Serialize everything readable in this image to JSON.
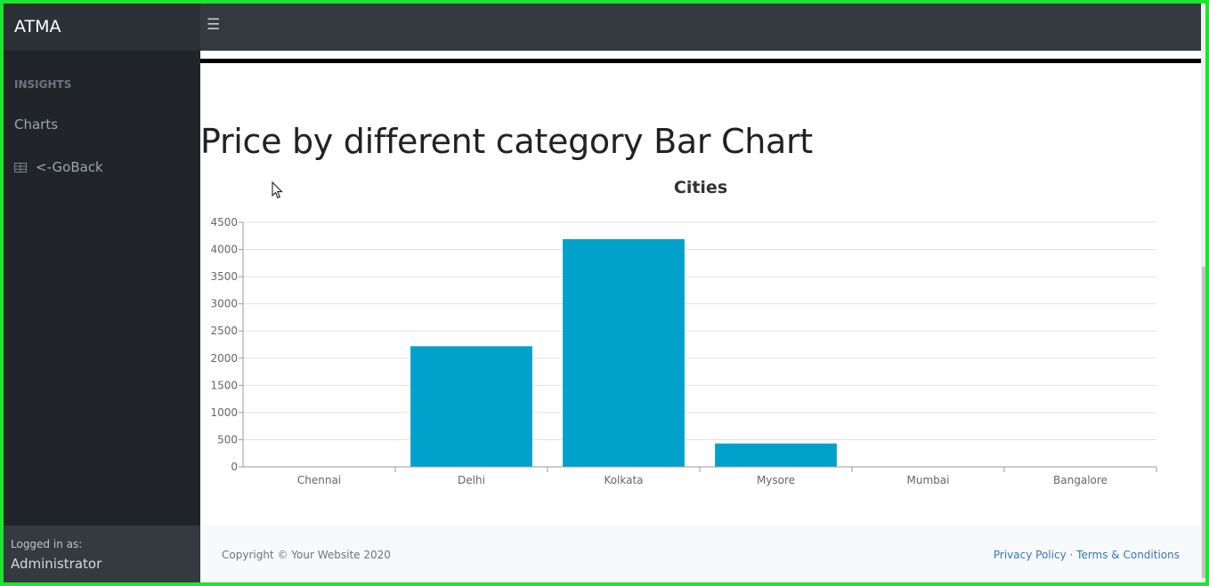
{
  "brand": {
    "title": "ATMA"
  },
  "topbar": {
    "toggle_icon": "hamburger-menu-icon"
  },
  "sidebar": {
    "heading": "INSIGHTS",
    "items": [
      {
        "label": "Charts",
        "icon": ""
      },
      {
        "label": "<-GoBack",
        "icon": "table-icon"
      }
    ],
    "footer": {
      "logged_in_label": "Logged in as:",
      "user": "Administrator"
    }
  },
  "main": {
    "title": "Price by different category Bar Chart"
  },
  "chart_data": {
    "type": "bar",
    "title": "Cities",
    "xlabel": "",
    "ylabel": "",
    "categories": [
      "Chennai",
      "Delhi",
      "Kolkata",
      "Mysore",
      "Mumbai",
      "Bangalore"
    ],
    "values": [
      0,
      2220,
      4190,
      430,
      0,
      0
    ],
    "ylim": [
      0,
      4500
    ],
    "yticks": [
      0,
      500,
      1000,
      1500,
      2000,
      2500,
      3000,
      3500,
      4000,
      4500
    ],
    "grid": true,
    "bar_color": "#00a2cc"
  },
  "footer": {
    "copyright": "Copyright © Your Website 2020",
    "privacy": "Privacy Policy",
    "separator": "·",
    "terms": "Terms & Conditions"
  },
  "colors": {
    "topbar": "#343a40",
    "sidebar": "#212529",
    "link": "#2f7ac0",
    "frame": "#19e62d"
  }
}
